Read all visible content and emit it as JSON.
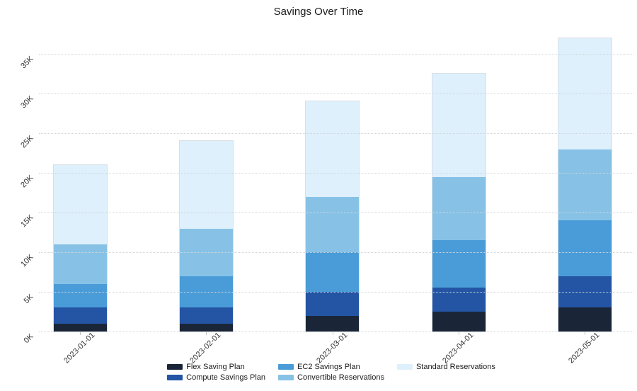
{
  "chart_data": {
    "type": "bar",
    "stacked": true,
    "title": "Savings Over Time",
    "xlabel": "",
    "ylabel": "",
    "categories": [
      "2023-01-01",
      "2023-02-01",
      "2023-03-01",
      "2023-04-01",
      "2023-05-01"
    ],
    "series": [
      {
        "name": "Flex Saving Plan",
        "color": "#1a2637",
        "values": [
          1000,
          1000,
          2000,
          2500,
          3000
        ]
      },
      {
        "name": "Compute Savings Plan",
        "color": "#2355a4",
        "values": [
          2000,
          2000,
          3000,
          3000,
          4000
        ]
      },
      {
        "name": "EC2 Savings Plan",
        "color": "#4a9cd8",
        "values": [
          3000,
          4000,
          5000,
          6000,
          7000
        ]
      },
      {
        "name": "Convertible Reservations",
        "color": "#87c2e6",
        "values": [
          5000,
          6000,
          7000,
          8000,
          9000
        ]
      },
      {
        "name": "Standard Reservations",
        "color": "#def0fb",
        "values": [
          10000,
          11000,
          12000,
          13000,
          14000
        ]
      }
    ],
    "y_ticks": [
      "0K",
      "5K",
      "10K",
      "15K",
      "20K",
      "25K",
      "30K",
      "35K"
    ],
    "y_tick_values": [
      0,
      5000,
      10000,
      15000,
      20000,
      25000,
      30000,
      35000
    ],
    "ylim": [
      0,
      37800
    ],
    "grid": "horizontal-dotted",
    "grid_color": "#d0d5da",
    "legend_position": "bottom",
    "legend_columns": [
      [
        "Flex Saving Plan",
        "Compute Savings Plan"
      ],
      [
        "EC2 Savings Plan",
        "Convertible Reservations"
      ],
      [
        "Standard Reservations"
      ]
    ]
  }
}
